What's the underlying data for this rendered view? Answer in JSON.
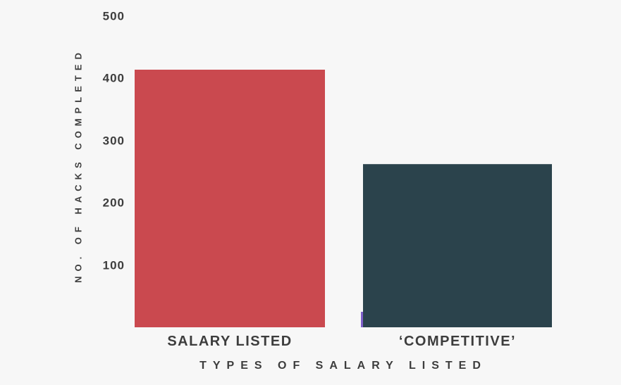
{
  "chart_data": {
    "type": "bar",
    "title": "",
    "categories": [
      "SALARY LISTED",
      "‘COMPETITIVE’"
    ],
    "values": [
      414,
      263
    ],
    "xlabel": "TYPES OF SALARY LISTED",
    "ylabel": "NO. OF HACKS COMPLETED",
    "ylim": [
      0,
      500
    ],
    "yticks": [
      500,
      400,
      300,
      200,
      100
    ],
    "grid": false,
    "legend": false,
    "bar_colors": [
      "#ca494f",
      "#2b434c"
    ]
  },
  "colors": {
    "background": "#f7f7f7",
    "text": "#3d3d3d",
    "bar_salary_listed": "#ca494f",
    "bar_competitive": "#2b434c",
    "artifact_purple": "#7e5fc8"
  }
}
